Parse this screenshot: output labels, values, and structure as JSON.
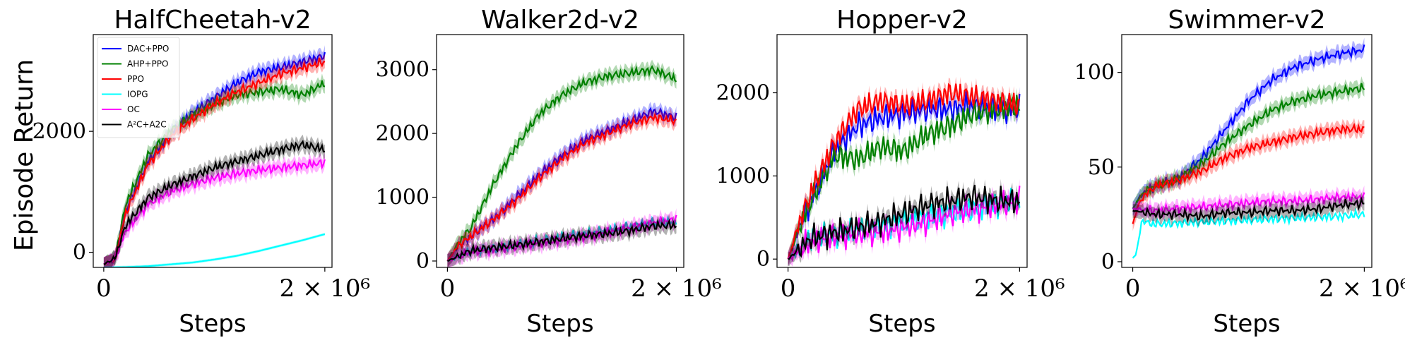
{
  "figure": {
    "ylabel": "Episode Return"
  },
  "colors": {
    "DAC+PPO": "#0000ff",
    "AHP+PPO": "#008000",
    "PPO": "#ff0000",
    "IOPG": "#00ffff",
    "OC": "#ff00ff",
    "A2C+A2C": "#000000"
  },
  "chart_data": [
    {
      "type": "line",
      "title": "HalfCheetah-v2",
      "xlabel": "Steps",
      "ylabel": "Episode Return",
      "xlim": [
        0,
        2000000
      ],
      "ylim": [
        -250,
        3600
      ],
      "xticks": [
        0,
        2000000
      ],
      "xtick_labels": [
        "0",
        "2 × 10⁶"
      ],
      "yticks": [
        0,
        2000
      ],
      "ytick_labels": [
        "0",
        "2000"
      ],
      "legend": {
        "placement": "top-left",
        "entries": [
          "DAC+PPO",
          "AHP+PPO",
          "PPO",
          "IOPG",
          "OC",
          "A²C+A2C"
        ]
      },
      "series": [
        {
          "name": "DAC+PPO",
          "key": "DAC+PPO",
          "x": [
            0,
            100000,
            200000,
            400000,
            600000,
            800000,
            1000000,
            1200000,
            1400000,
            1600000,
            1800000,
            2000000
          ],
          "y": [
            -200,
            -120,
            700,
            1500,
            1950,
            2300,
            2550,
            2800,
            2980,
            3060,
            3150,
            3250
          ]
        },
        {
          "name": "AHP+PPO",
          "key": "AHP+PPO",
          "x": [
            0,
            100000,
            200000,
            400000,
            600000,
            800000,
            1000000,
            1200000,
            1400000,
            1600000,
            1800000,
            2000000
          ],
          "y": [
            -200,
            -100,
            800,
            1600,
            2000,
            2250,
            2450,
            2600,
            2650,
            2700,
            2600,
            2800
          ]
        },
        {
          "name": "PPO",
          "key": "PPO",
          "x": [
            0,
            100000,
            200000,
            400000,
            600000,
            800000,
            1000000,
            1200000,
            1400000,
            1600000,
            1800000,
            2000000
          ],
          "y": [
            -200,
            -120,
            650,
            1450,
            1900,
            2200,
            2450,
            2650,
            2800,
            2950,
            3050,
            3150
          ]
        },
        {
          "name": "IOPG",
          "key": "IOPG",
          "x": [
            0,
            200000,
            400000,
            600000,
            800000,
            1000000,
            1200000,
            1400000,
            1600000,
            1800000,
            2000000
          ],
          "y": [
            -250,
            -245,
            -230,
            -200,
            -170,
            -120,
            -60,
            20,
            110,
            200,
            300
          ]
        },
        {
          "name": "OC",
          "key": "OC",
          "x": [
            0,
            100000,
            200000,
            400000,
            600000,
            800000,
            1000000,
            1200000,
            1400000,
            1600000,
            1800000,
            2000000
          ],
          "y": [
            -200,
            -100,
            350,
            800,
            1000,
            1130,
            1230,
            1300,
            1360,
            1400,
            1440,
            1480
          ]
        },
        {
          "name": "A²C+A2C",
          "key": "A2C+A2C",
          "x": [
            0,
            100000,
            200000,
            400000,
            600000,
            800000,
            1000000,
            1200000,
            1400000,
            1600000,
            1800000,
            2000000
          ],
          "y": [
            -200,
            -100,
            450,
            900,
            1100,
            1250,
            1400,
            1500,
            1600,
            1700,
            1780,
            1700
          ]
        }
      ]
    },
    {
      "type": "line",
      "title": "Walker2d-v2",
      "xlabel": "Steps",
      "ylabel": "",
      "xlim": [
        0,
        2000000
      ],
      "ylim": [
        -100,
        3550
      ],
      "xticks": [
        0,
        2000000
      ],
      "xtick_labels": [
        "0",
        "2 × 10⁶"
      ],
      "yticks": [
        0,
        1000,
        2000,
        3000
      ],
      "ytick_labels": [
        "0",
        "1000",
        "2000",
        "3000"
      ],
      "series": [
        {
          "name": "DAC+PPO",
          "key": "DAC+PPO",
          "x": [
            0,
            100000,
            200000,
            400000,
            600000,
            800000,
            1000000,
            1200000,
            1400000,
            1600000,
            1800000,
            2000000
          ],
          "y": [
            0,
            250,
            380,
            650,
            1000,
            1350,
            1650,
            1900,
            2050,
            2200,
            2350,
            2250
          ]
        },
        {
          "name": "AHP+PPO",
          "key": "AHP+PPO",
          "x": [
            0,
            100000,
            200000,
            400000,
            600000,
            800000,
            1000000,
            1200000,
            1400000,
            1600000,
            1800000,
            2000000
          ],
          "y": [
            0,
            300,
            500,
            1200,
            1800,
            2300,
            2600,
            2800,
            2900,
            2950,
            3000,
            2850
          ]
        },
        {
          "name": "PPO",
          "key": "PPO",
          "x": [
            0,
            100000,
            200000,
            400000,
            600000,
            800000,
            1000000,
            1200000,
            1400000,
            1600000,
            1800000,
            2000000
          ],
          "y": [
            0,
            250,
            380,
            650,
            950,
            1300,
            1600,
            1850,
            2000,
            2150,
            2250,
            2200
          ]
        },
        {
          "name": "IOPG",
          "key": "IOPG",
          "x": [
            0,
            200000,
            400000,
            600000,
            800000,
            1000000,
            1200000,
            1400000,
            1600000,
            1800000,
            2000000
          ],
          "y": [
            0,
            150,
            200,
            250,
            320,
            380,
            430,
            480,
            550,
            600,
            620
          ]
        },
        {
          "name": "OC",
          "key": "OC",
          "x": [
            0,
            200000,
            400000,
            600000,
            800000,
            1000000,
            1200000,
            1400000,
            1600000,
            1800000,
            2000000
          ],
          "y": [
            0,
            150,
            180,
            230,
            280,
            330,
            380,
            450,
            520,
            600,
            650
          ]
        },
        {
          "name": "A²C+A2C",
          "key": "A2C+A2C",
          "x": [
            0,
            200000,
            400000,
            600000,
            800000,
            1000000,
            1200000,
            1400000,
            1600000,
            1800000,
            2000000
          ],
          "y": [
            0,
            160,
            210,
            250,
            300,
            350,
            400,
            430,
            480,
            550,
            560
          ]
        }
      ]
    },
    {
      "type": "line",
      "title": "Hopper-v2",
      "xlabel": "Steps",
      "ylabel": "",
      "xlim": [
        0,
        2000000
      ],
      "ylim": [
        -100,
        2700
      ],
      "xticks": [
        0,
        2000000
      ],
      "xtick_labels": [
        "0",
        "2 × 10⁶"
      ],
      "yticks": [
        0,
        1000,
        2000
      ],
      "ytick_labels": [
        "0",
        "1000",
        "2000"
      ],
      "series": [
        {
          "name": "DAC+PPO",
          "key": "DAC+PPO",
          "x": [
            0,
            100000,
            200000,
            400000,
            600000,
            800000,
            1000000,
            1200000,
            1400000,
            1600000,
            1800000,
            2000000
          ],
          "y": [
            0,
            400,
            700,
            1300,
            1600,
            1700,
            1750,
            1800,
            1800,
            1850,
            1800,
            1800
          ]
        },
        {
          "name": "AHP+PPO",
          "key": "AHP+PPO",
          "x": [
            0,
            100000,
            200000,
            400000,
            600000,
            800000,
            1000000,
            1200000,
            1400000,
            1600000,
            1800000,
            2000000
          ],
          "y": [
            0,
            400,
            700,
            1250,
            1200,
            1350,
            1300,
            1500,
            1600,
            1750,
            1800,
            1850
          ]
        },
        {
          "name": "PPO",
          "key": "PPO",
          "x": [
            0,
            100000,
            200000,
            400000,
            600000,
            800000,
            1000000,
            1200000,
            1400000,
            1600000,
            1800000,
            2000000
          ],
          "y": [
            0,
            450,
            800,
            1400,
            1800,
            1900,
            1850,
            1900,
            2000,
            1950,
            1900,
            1850
          ]
        },
        {
          "name": "IOPG",
          "key": "IOPG",
          "x": [
            0,
            200000,
            400000,
            600000,
            800000,
            1000000,
            1200000,
            1400000,
            1600000,
            1800000,
            2000000
          ],
          "y": [
            0,
            250,
            300,
            350,
            400,
            450,
            500,
            550,
            600,
            650,
            700
          ]
        },
        {
          "name": "OC",
          "key": "OC",
          "x": [
            0,
            200000,
            400000,
            600000,
            800000,
            1000000,
            1200000,
            1400000,
            1600000,
            1800000,
            2000000
          ],
          "y": [
            0,
            220,
            280,
            300,
            330,
            380,
            450,
            550,
            600,
            650,
            700
          ]
        },
        {
          "name": "A²C+A2C",
          "key": "A2C+A2C",
          "x": [
            0,
            200000,
            400000,
            600000,
            800000,
            1000000,
            1200000,
            1400000,
            1600000,
            1800000,
            2000000
          ],
          "y": [
            0,
            250,
            320,
            380,
            450,
            550,
            650,
            700,
            750,
            700,
            700
          ]
        }
      ]
    },
    {
      "type": "line",
      "title": "Swimmer-v2",
      "xlabel": "Steps",
      "ylabel": "",
      "xlim": [
        0,
        2000000
      ],
      "ylim": [
        -3,
        120
      ],
      "xticks": [
        0,
        2000000
      ],
      "xtick_labels": [
        "0",
        "2 × 10⁶"
      ],
      "yticks": [
        0,
        50,
        100
      ],
      "ytick_labels": [
        "0",
        "50",
        "100"
      ],
      "series": [
        {
          "name": "DAC+PPO",
          "key": "DAC+PPO",
          "x": [
            0,
            50000,
            100000,
            200000,
            400000,
            600000,
            800000,
            1000000,
            1200000,
            1400000,
            1600000,
            1800000,
            2000000
          ],
          "y": [
            28,
            33,
            37,
            40,
            44,
            55,
            70,
            85,
            96,
            103,
            107,
            110,
            112
          ]
        },
        {
          "name": "AHP+PPO",
          "key": "AHP+PPO",
          "x": [
            0,
            50000,
            100000,
            200000,
            400000,
            600000,
            800000,
            1000000,
            1200000,
            1400000,
            1600000,
            1800000,
            2000000
          ],
          "y": [
            28,
            33,
            37,
            40,
            44,
            52,
            63,
            72,
            80,
            85,
            88,
            90,
            92
          ]
        },
        {
          "name": "PPO",
          "key": "PPO",
          "x": [
            0,
            50000,
            100000,
            200000,
            400000,
            600000,
            800000,
            1000000,
            1200000,
            1400000,
            1600000,
            1800000,
            2000000
          ],
          "y": [
            20,
            30,
            35,
            40,
            43,
            48,
            55,
            60,
            63,
            66,
            68,
            70,
            70
          ]
        },
        {
          "name": "IOPG",
          "key": "IOPG",
          "x": [
            0,
            30000,
            80000,
            150000,
            300000,
            600000,
            1000000,
            1400000,
            1800000,
            2000000
          ],
          "y": [
            2,
            4,
            22,
            20,
            20,
            21,
            22,
            23,
            24,
            25
          ]
        },
        {
          "name": "OC",
          "key": "OC",
          "x": [
            0,
            200000,
            400000,
            600000,
            800000,
            1000000,
            1200000,
            1400000,
            1600000,
            1800000,
            2000000
          ],
          "y": [
            28,
            27,
            28,
            29,
            30,
            31,
            32,
            32,
            33,
            34,
            34
          ]
        },
        {
          "name": "A²C+A2C",
          "key": "A2C+A2C",
          "x": [
            0,
            200000,
            400000,
            600000,
            800000,
            1000000,
            1200000,
            1400000,
            1600000,
            1800000,
            2000000
          ],
          "y": [
            27,
            25,
            25,
            24,
            26,
            26,
            27,
            27,
            28,
            30,
            31
          ]
        }
      ]
    }
  ]
}
